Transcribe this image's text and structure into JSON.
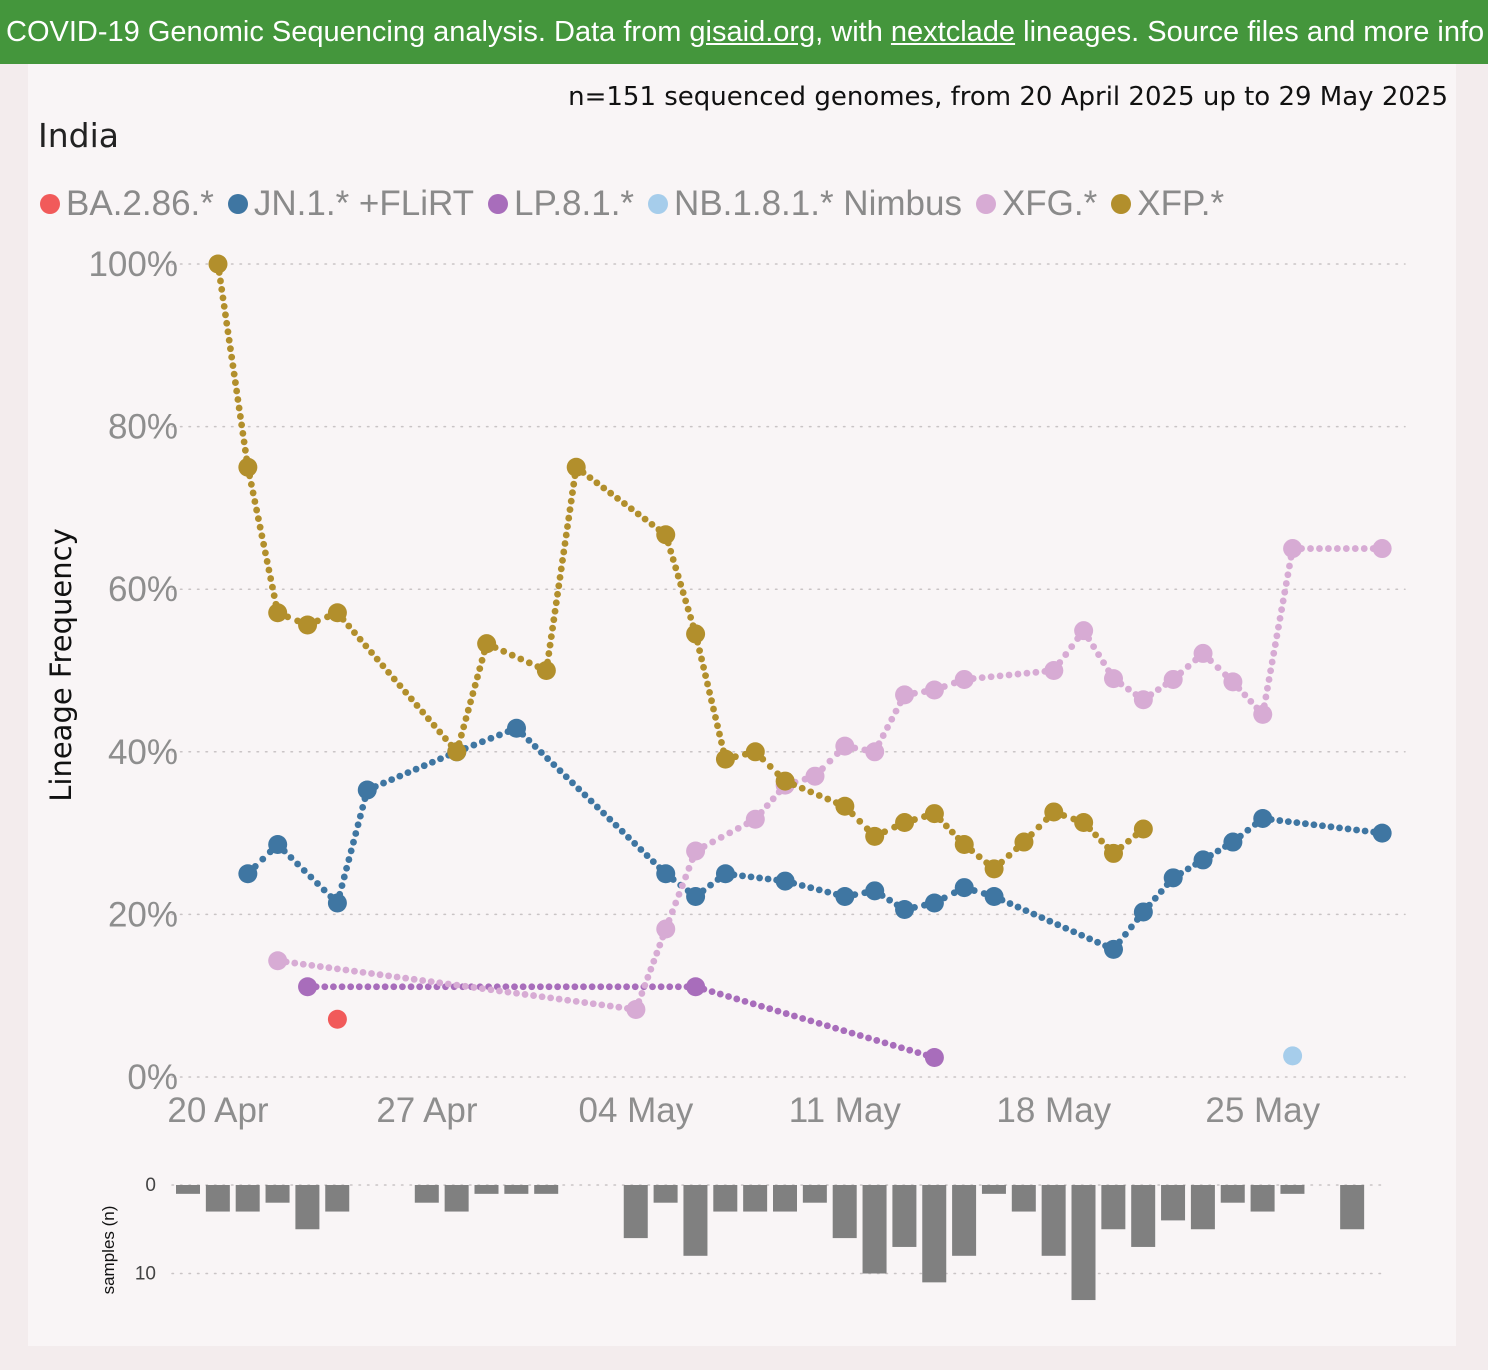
{
  "header": {
    "text_before_link1": "COVID-19 Genomic Sequencing analysis. Data from ",
    "link1": "gisaid.org",
    "text_between": ", with ",
    "link2": "nextclade",
    "text_after": " lineages. Source files and more info o"
  },
  "subtitle": "n=151 sequenced genomes, from 20 April 2025 up to 29 May 2025",
  "country": "India",
  "colors": {
    "banner": "#44963c",
    "panel": "#f9f5f6",
    "page": "#f3eced",
    "bars": "#808080"
  },
  "chart_data": [
    {
      "type": "line",
      "ylabel": "Lineage Frequency",
      "ylim": [
        0,
        100
      ],
      "y_ticks": [
        "0%",
        "20%",
        "40%",
        "60%",
        "80%",
        "100%"
      ],
      "y_tick_values": [
        0,
        20,
        40,
        60,
        80,
        100
      ],
      "x_ticks": [
        "20 Apr",
        "27 Apr",
        "04 May",
        "11 May",
        "18 May",
        "25 May"
      ],
      "x_tick_dates": [
        "2025-04-20",
        "2025-04-27",
        "2025-05-04",
        "2025-05-11",
        "2025-05-18",
        "2025-05-25"
      ],
      "xlim": [
        "2025-04-20",
        "2025-05-29"
      ],
      "grid": "horizontal dotted",
      "legend_position": "top",
      "series": [
        {
          "name": "BA.2.86.*",
          "color": "#f15a5a",
          "x": [
            "2025-04-24"
          ],
          "y": [
            7.1
          ]
        },
        {
          "name": "JN.1.* +FLiRT",
          "color": "#3f76a2",
          "x": [
            "2025-04-21",
            "2025-04-22",
            "2025-04-24",
            "2025-04-25",
            "2025-04-28",
            "2025-04-30",
            "2025-05-05",
            "2025-05-06",
            "2025-05-07",
            "2025-05-09",
            "2025-05-11",
            "2025-05-12",
            "2025-05-13",
            "2025-05-14",
            "2025-05-15",
            "2025-05-16",
            "2025-05-20",
            "2025-05-21",
            "2025-05-22",
            "2025-05-23",
            "2025-05-24",
            "2025-05-25",
            "2025-05-29"
          ],
          "y": [
            25,
            28.6,
            21.4,
            35.3,
            40,
            42.9,
            25,
            22.2,
            25,
            24.1,
            22.2,
            22.9,
            20.6,
            21.4,
            23.3,
            22.2,
            15.7,
            20.3,
            24.5,
            26.7,
            28.9,
            31.8,
            30
          ]
        },
        {
          "name": "LP.8.1.*",
          "color": "#a86dbb",
          "x": [
            "2025-04-23",
            "2025-05-06",
            "2025-05-14"
          ],
          "y": [
            11.1,
            11.1,
            2.4
          ]
        },
        {
          "name": "NB.1.8.1.* Nimbus",
          "color": "#a6cdeb",
          "x": [
            "2025-05-26"
          ],
          "y": [
            2.6
          ]
        },
        {
          "name": "XFG.*",
          "color": "#d7abd4",
          "x": [
            "2025-04-22",
            "2025-05-04",
            "2025-05-05",
            "2025-05-06",
            "2025-05-08",
            "2025-05-09",
            "2025-05-10",
            "2025-05-11",
            "2025-05-12",
            "2025-05-13",
            "2025-05-14",
            "2025-05-15",
            "2025-05-18",
            "2025-05-19",
            "2025-05-20",
            "2025-05-21",
            "2025-05-22",
            "2025-05-23",
            "2025-05-24",
            "2025-05-25",
            "2025-05-26",
            "2025-05-29"
          ],
          "y": [
            14.3,
            8.3,
            18.2,
            27.8,
            31.7,
            35.9,
            37,
            40.7,
            40,
            47,
            47.6,
            48.9,
            50,
            54.9,
            49,
            46.4,
            48.9,
            52.1,
            48.6,
            44.6,
            65,
            65
          ]
        },
        {
          "name": "XFP.*",
          "color": "#b28f2c",
          "x": [
            "2025-04-20",
            "2025-04-21",
            "2025-04-22",
            "2025-04-23",
            "2025-04-24",
            "2025-04-28",
            "2025-04-29",
            "2025-05-01",
            "2025-05-02",
            "2025-05-05",
            "2025-05-06",
            "2025-05-07",
            "2025-05-08",
            "2025-05-09",
            "2025-05-11",
            "2025-05-12",
            "2025-05-13",
            "2025-05-14",
            "2025-05-15",
            "2025-05-16",
            "2025-05-17",
            "2025-05-18",
            "2025-05-19",
            "2025-05-20",
            "2025-05-21"
          ],
          "y": [
            100,
            75,
            57.1,
            55.6,
            57.1,
            40,
            53.3,
            50,
            75,
            66.7,
            54.5,
            39.1,
            40,
            36.4,
            33.3,
            29.6,
            31.3,
            32.4,
            28.6,
            25.6,
            28.9,
            32.6,
            31.3,
            27.5,
            30.5
          ]
        }
      ]
    },
    {
      "type": "bar",
      "ylabel": "samples (n)",
      "y_ticks": [
        "0",
        "10"
      ],
      "y_tick_values": [
        0,
        10
      ],
      "ylim": [
        0,
        13
      ],
      "grid": "horizontal dotted",
      "x": [
        "2025-04-20",
        "2025-04-21",
        "2025-04-22",
        "2025-04-23",
        "2025-04-24",
        "2025-04-25",
        "2025-04-28",
        "2025-04-29",
        "2025-04-30",
        "2025-05-01",
        "2025-05-02",
        "2025-05-05",
        "2025-05-06",
        "2025-05-07",
        "2025-05-08",
        "2025-05-09",
        "2025-05-10",
        "2025-05-11",
        "2025-05-12",
        "2025-05-13",
        "2025-05-14",
        "2025-05-15",
        "2025-05-16",
        "2025-05-17",
        "2025-05-18",
        "2025-05-19",
        "2025-05-20",
        "2025-05-21",
        "2025-05-22",
        "2025-05-23",
        "2025-05-24",
        "2025-05-25",
        "2025-05-26",
        "2025-05-27",
        "2025-05-29"
      ],
      "values": [
        1,
        3,
        3,
        2,
        5,
        3,
        2,
        3,
        1,
        1,
        1,
        6,
        2,
        8,
        3,
        3,
        3,
        2,
        6,
        10,
        7,
        11,
        8,
        1,
        3,
        8,
        13,
        5,
        7,
        4,
        5,
        2,
        3,
        1,
        5
      ]
    }
  ]
}
